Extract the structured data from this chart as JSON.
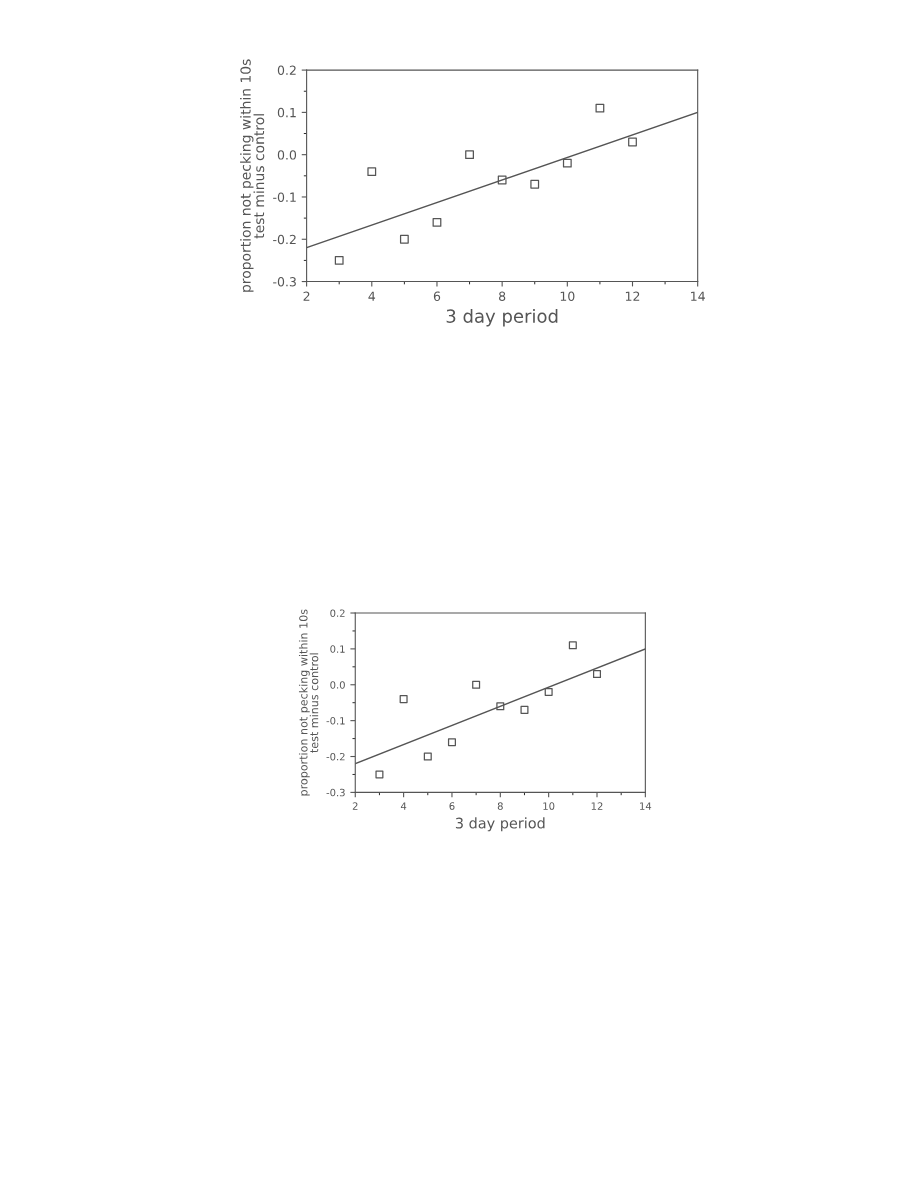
{
  "chart_data": [
    {
      "type": "scatter",
      "xlabel": "3 day period",
      "ylabel": "proportion not pecking within 10s\ntest minus control",
      "xlim": [
        2,
        14
      ],
      "ylim": [
        -0.3,
        0.2
      ],
      "xticks": [
        2,
        4,
        6,
        8,
        10,
        12,
        14
      ],
      "yticks": [
        {
          "value": -0.3,
          "label": "-0.3"
        },
        {
          "value": -0.2,
          "label": "-0.2"
        },
        {
          "value": -0.1,
          "label": "-0.1"
        },
        {
          "value": 0,
          "label": "0.0"
        },
        {
          "value": 0.1,
          "label": "0.1"
        },
        {
          "value": 0.2,
          "label": "0.2"
        }
      ],
      "grid": false,
      "series": [
        {
          "marker": "square",
          "color": "#555555",
          "x": [
            3,
            4,
            5,
            6,
            7,
            8,
            9,
            10,
            11,
            12
          ],
          "values": [
            -0.25,
            -0.04,
            -0.2,
            -0.16,
            0.0,
            -0.06,
            -0.07,
            -0.02,
            0.11,
            0.03
          ]
        },
        {
          "type": "line",
          "marker": "none",
          "line_style": "solid",
          "color": "#555555",
          "x": [
            2,
            14
          ],
          "values": [
            -0.22,
            0.1
          ]
        }
      ]
    },
    {
      "type": "scatter",
      "xlabel": "3 day period",
      "ylabel": "proportion not pecking within 10s\ntest minus control",
      "xlim": [
        2,
        14
      ],
      "ylim": [
        -0.3,
        0.2
      ],
      "xticks": [
        2,
        4,
        6,
        8,
        10,
        12,
        14
      ],
      "yticks": [
        {
          "value": -0.3,
          "label": "-0.3"
        },
        {
          "value": -0.2,
          "label": "-0.2"
        },
        {
          "value": -0.1,
          "label": "-0.1"
        },
        {
          "value": 0,
          "label": "0.0"
        },
        {
          "value": 0.1,
          "label": "0.1"
        },
        {
          "value": 0.2,
          "label": "0.2"
        }
      ],
      "grid": false,
      "series": [
        {
          "marker": "square",
          "color": "#555555",
          "x": [
            3,
            4,
            5,
            6,
            7,
            8,
            9,
            10,
            11,
            12
          ],
          "values": [
            -0.25,
            -0.04,
            -0.2,
            -0.16,
            0.0,
            -0.06,
            -0.07,
            -0.02,
            0.11,
            0.03
          ]
        },
        {
          "type": "line",
          "marker": "none",
          "line_style": "solid",
          "color": "#555555",
          "x": [
            2,
            14
          ],
          "values": [
            -0.22,
            0.1
          ]
        }
      ]
    }
  ]
}
